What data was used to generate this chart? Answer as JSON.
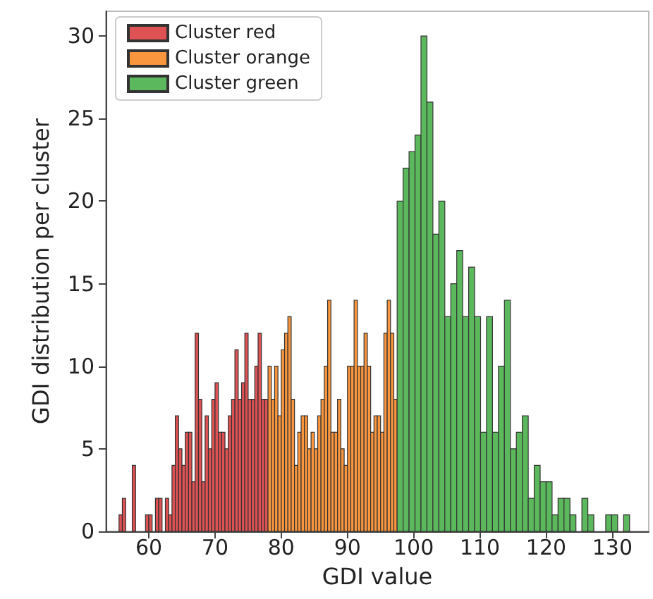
{
  "chart_data": {
    "type": "histogram",
    "xlabel": "GDI value",
    "ylabel": "GDI distribution per cluster",
    "bins": [
      55.5,
      56,
      56.5,
      57.5,
      58,
      59.5,
      60,
      60.5,
      61,
      61.5,
      62,
      62.5,
      63,
      63.5,
      64,
      64.5,
      65,
      65.5,
      66,
      66.5,
      67,
      67.5,
      68,
      68.5,
      69,
      69.5,
      70,
      70.5,
      71,
      71.5,
      72,
      72.5,
      73,
      73.5,
      74,
      74.5,
      75,
      75.5,
      76,
      76.5,
      77,
      77.5,
      78,
      78.5,
      79,
      79.5,
      80,
      80.5,
      81,
      81.5,
      82,
      82.5,
      83,
      83.5,
      84,
      84.5,
      85,
      85.5,
      86,
      86.5,
      87,
      87.5,
      88,
      88.5,
      89,
      89.5,
      90,
      90.5,
      91,
      91.5,
      92,
      92.5,
      93,
      93.5,
      94,
      94.5,
      95,
      95.5,
      96,
      96.5,
      97,
      97.5,
      98.4,
      99.3,
      100.2,
      101.1,
      102,
      102.9,
      103.8,
      104.7,
      105.6,
      106.5,
      107.4,
      108.3,
      109.2,
      110.1,
      111,
      111.9,
      112.8,
      113.7,
      114.6,
      115.5,
      116.4,
      117.3,
      118.2,
      119.1,
      120,
      120.9,
      121.8,
      122.7,
      123.6,
      124.5,
      125.4,
      126.3,
      127.2,
      129,
      129.9,
      130.8,
      131.7,
      132.6
    ],
    "series": [
      {
        "name": "Cluster red",
        "color": "#de5253",
        "values": [
          1,
          2,
          0,
          4,
          0,
          1,
          1,
          0,
          2,
          2,
          0,
          2,
          1,
          4,
          7,
          5,
          4,
          6,
          6,
          3,
          12,
          8,
          3,
          7,
          5,
          8,
          9,
          6,
          6,
          5,
          7,
          8,
          11,
          8,
          9,
          12,
          8,
          8,
          10,
          12,
          8,
          8,
          null,
          null,
          null,
          null,
          null,
          null,
          null,
          null,
          null,
          null,
          null,
          null,
          null,
          null,
          null,
          null,
          null,
          null,
          null,
          null,
          null,
          null,
          null,
          null,
          null,
          null,
          null,
          null,
          null,
          null,
          null,
          null,
          null,
          null,
          null,
          null,
          null,
          null,
          null,
          null,
          null,
          null,
          null,
          null,
          null,
          null,
          null,
          null,
          null,
          null,
          null,
          null,
          null,
          null,
          null,
          null,
          null,
          null,
          null,
          null,
          null,
          null,
          null,
          null,
          null,
          null,
          null,
          null,
          null,
          null,
          null,
          null,
          null,
          null,
          null,
          null,
          null
        ]
      },
      {
        "name": "Cluster orange",
        "color": "#f9963e",
        "values": [
          null,
          null,
          null,
          null,
          null,
          null,
          null,
          null,
          null,
          null,
          null,
          null,
          null,
          null,
          null,
          null,
          null,
          null,
          null,
          null,
          null,
          null,
          null,
          null,
          null,
          null,
          null,
          null,
          null,
          null,
          null,
          null,
          null,
          null,
          null,
          null,
          null,
          null,
          null,
          null,
          null,
          null,
          10,
          8,
          10,
          7,
          11,
          12,
          13,
          8,
          4,
          6,
          7,
          7,
          5,
          6,
          5,
          7,
          8,
          10,
          14,
          6,
          6,
          8,
          5,
          4,
          10,
          10,
          14,
          10,
          10,
          12,
          10,
          6,
          7,
          7,
          6,
          12,
          14,
          12,
          8,
          null,
          null,
          null,
          null,
          null,
          null,
          null,
          null,
          null,
          null,
          null,
          null,
          null,
          null,
          null,
          null,
          null,
          null,
          null,
          null,
          null,
          null,
          null,
          null,
          null,
          null,
          null,
          null,
          null,
          null,
          null,
          null,
          null,
          null,
          null,
          null,
          null,
          null
        ]
      },
      {
        "name": "Cluster green",
        "color": "#5cb85c",
        "values": [
          null,
          null,
          null,
          null,
          null,
          null,
          null,
          null,
          null,
          null,
          null,
          null,
          null,
          null,
          null,
          null,
          null,
          null,
          null,
          null,
          null,
          null,
          null,
          null,
          null,
          null,
          null,
          null,
          null,
          null,
          null,
          null,
          null,
          null,
          null,
          null,
          null,
          null,
          null,
          null,
          null,
          null,
          null,
          null,
          null,
          null,
          null,
          null,
          null,
          null,
          null,
          null,
          null,
          null,
          null,
          null,
          null,
          null,
          null,
          null,
          null,
          null,
          null,
          null,
          null,
          null,
          null,
          null,
          null,
          null,
          null,
          null,
          null,
          null,
          null,
          null,
          null,
          null,
          null,
          null,
          null,
          20,
          22,
          23,
          24,
          30,
          26,
          18,
          20,
          13,
          15,
          17,
          13,
          16,
          13,
          6,
          13,
          6,
          10,
          14,
          5,
          6,
          7,
          2,
          4,
          3,
          3,
          1,
          2,
          2,
          1,
          0,
          2,
          1,
          0,
          1,
          1,
          0,
          1
        ]
      }
    ],
    "xlim": [
      53.5,
      135.5
    ],
    "xticks": [
      60,
      70,
      80,
      90,
      100,
      110,
      120,
      130
    ],
    "ylim": [
      0,
      31.5
    ],
    "yticks": [
      0,
      5,
      10,
      15,
      20,
      25,
      30
    ],
    "grid": false,
    "legend": "top left"
  }
}
